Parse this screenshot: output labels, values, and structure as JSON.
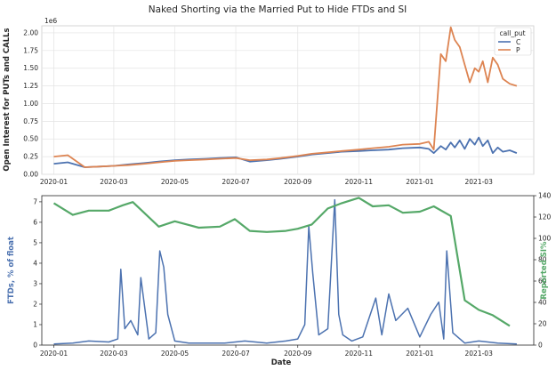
{
  "figure": {
    "title": "Naked Shorting via the Married Put to Hide FTDs and SI"
  },
  "chart_data": [
    {
      "type": "line",
      "ylabel": "Open Interest for PUTs and CALLs",
      "y_offset_label": "1e6",
      "ylim": [
        0,
        2.1
      ],
      "yticks": [
        "0.00",
        "0.25",
        "0.50",
        "0.75",
        "1.00",
        "1.25",
        "1.50",
        "1.75",
        "2.00"
      ],
      "xticks": [
        "2020-01",
        "2020-03",
        "2020-05",
        "2020-07",
        "2020-09",
        "2020-11",
        "2021-01",
        "2021-03"
      ],
      "legend": {
        "title": "call_put",
        "placement": "top-right"
      },
      "grid": true,
      "x": [
        "2020-01-01",
        "2020-01-15",
        "2020-02-01",
        "2020-02-15",
        "2020-03-01",
        "2020-03-15",
        "2020-04-01",
        "2020-04-15",
        "2020-05-01",
        "2020-05-15",
        "2020-06-01",
        "2020-06-15",
        "2020-07-01",
        "2020-07-15",
        "2020-08-01",
        "2020-08-15",
        "2020-09-01",
        "2020-09-15",
        "2020-10-01",
        "2020-10-15",
        "2020-11-01",
        "2020-11-15",
        "2020-12-01",
        "2020-12-15",
        "2021-01-01",
        "2021-01-10",
        "2021-01-15",
        "2021-01-22",
        "2021-01-27",
        "2021-02-01",
        "2021-02-05",
        "2021-02-10",
        "2021-02-15",
        "2021-02-20",
        "2021-02-25",
        "2021-03-01",
        "2021-03-05",
        "2021-03-10",
        "2021-03-15",
        "2021-03-20",
        "2021-03-25",
        "2021-04-01",
        "2021-04-08"
      ],
      "series": [
        {
          "name": "C",
          "color": "#4c72b0",
          "values": [
            0.15,
            0.17,
            0.1,
            0.11,
            0.12,
            0.14,
            0.16,
            0.18,
            0.2,
            0.21,
            0.22,
            0.23,
            0.24,
            0.18,
            0.2,
            0.22,
            0.25,
            0.28,
            0.3,
            0.32,
            0.33,
            0.34,
            0.35,
            0.37,
            0.38,
            0.36,
            0.3,
            0.4,
            0.35,
            0.45,
            0.38,
            0.48,
            0.36,
            0.5,
            0.42,
            0.52,
            0.4,
            0.48,
            0.3,
            0.38,
            0.32,
            0.34,
            0.3
          ]
        },
        {
          "name": "P",
          "color": "#dd8452",
          "values": [
            0.25,
            0.27,
            0.1,
            0.11,
            0.12,
            0.13,
            0.15,
            0.17,
            0.19,
            0.2,
            0.21,
            0.22,
            0.23,
            0.2,
            0.21,
            0.23,
            0.26,
            0.29,
            0.31,
            0.33,
            0.35,
            0.37,
            0.39,
            0.42,
            0.43,
            0.46,
            0.35,
            1.7,
            1.6,
            2.08,
            1.9,
            1.8,
            1.55,
            1.3,
            1.5,
            1.45,
            1.6,
            1.3,
            1.65,
            1.55,
            1.35,
            1.28,
            1.25
          ]
        }
      ]
    },
    {
      "type": "line",
      "xlabel": "Date",
      "ylabel": "FTDs, % of float",
      "ylabel_right": "Reported SI%",
      "ylim": [
        0,
        7.3
      ],
      "ylim_right": [
        0,
        140
      ],
      "yticks": [
        "0",
        "1",
        "2",
        "3",
        "4",
        "5",
        "6",
        "7"
      ],
      "yticks_right": [
        "0",
        "20",
        "40",
        "60",
        "80",
        "100",
        "120",
        "140"
      ],
      "xticks": [
        "2020-01",
        "2020-03",
        "2020-05",
        "2020-07",
        "2020-09",
        "2020-11",
        "2021-01",
        "2021-03"
      ],
      "grid": false,
      "series": [
        {
          "name": "FTDs, % of float",
          "axis": "left",
          "color": "#4c72b0",
          "x": [
            "2020-01-01",
            "2020-01-20",
            "2020-02-05",
            "2020-02-25",
            "2020-03-05",
            "2020-03-08",
            "2020-03-12",
            "2020-03-18",
            "2020-03-25",
            "2020-03-28",
            "2020-04-05",
            "2020-04-12",
            "2020-04-16",
            "2020-04-20",
            "2020-04-24",
            "2020-05-01",
            "2020-05-15",
            "2020-06-01",
            "2020-06-20",
            "2020-07-10",
            "2020-08-01",
            "2020-08-20",
            "2020-09-01",
            "2020-09-08",
            "2020-09-12",
            "2020-09-16",
            "2020-09-22",
            "2020-10-01",
            "2020-10-08",
            "2020-10-12",
            "2020-10-16",
            "2020-10-25",
            "2020-11-05",
            "2020-11-18",
            "2020-11-24",
            "2020-12-01",
            "2020-12-08",
            "2020-12-20",
            "2021-01-01",
            "2021-01-12",
            "2021-01-20",
            "2021-01-25",
            "2021-01-28",
            "2021-02-03",
            "2021-02-15",
            "2021-03-01",
            "2021-03-20",
            "2021-04-08"
          ],
          "values": [
            0.05,
            0.1,
            0.2,
            0.15,
            0.3,
            3.7,
            0.8,
            1.2,
            0.5,
            3.3,
            0.3,
            0.6,
            4.6,
            3.8,
            1.5,
            0.2,
            0.1,
            0.1,
            0.1,
            0.2,
            0.1,
            0.2,
            0.3,
            1.0,
            5.8,
            3.5,
            0.5,
            0.8,
            7.1,
            1.5,
            0.5,
            0.2,
            0.4,
            2.3,
            0.5,
            2.5,
            1.2,
            1.8,
            0.4,
            1.5,
            2.1,
            0.3,
            4.6,
            0.6,
            0.1,
            0.2,
            0.1,
            0.05
          ]
        },
        {
          "name": "Reported SI%",
          "axis": "right",
          "color": "#55a868",
          "x": [
            "2020-01-01",
            "2020-01-20",
            "2020-02-05",
            "2020-02-25",
            "2020-03-10",
            "2020-03-20",
            "2020-04-15",
            "2020-05-01",
            "2020-05-25",
            "2020-06-15",
            "2020-06-30",
            "2020-07-15",
            "2020-08-01",
            "2020-08-20",
            "2020-09-01",
            "2020-09-15",
            "2020-10-01",
            "2020-10-15",
            "2020-11-01",
            "2020-11-15",
            "2020-12-01",
            "2020-12-15",
            "2021-01-01",
            "2021-01-15",
            "2021-02-01",
            "2021-02-15",
            "2021-03-01",
            "2021-03-15",
            "2021-04-01"
          ],
          "values": [
            133,
            122,
            126,
            126,
            131,
            134,
            111,
            116,
            110,
            111,
            118,
            107,
            106,
            107,
            109,
            113,
            128,
            133,
            138,
            130,
            131,
            124,
            125,
            130,
            121,
            42,
            33,
            28,
            18
          ]
        }
      ]
    }
  ]
}
